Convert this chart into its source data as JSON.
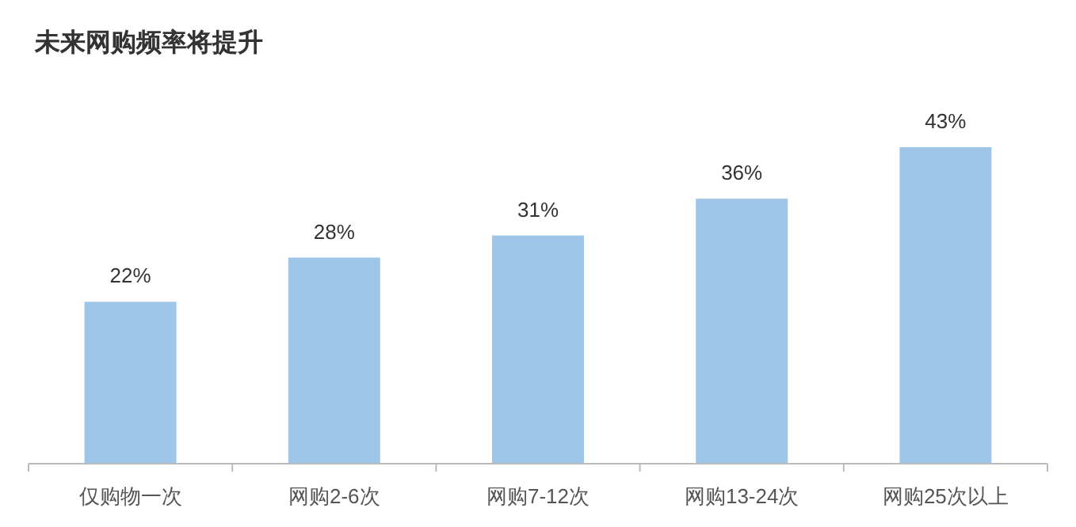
{
  "chart_data": {
    "type": "bar",
    "title": "未来网购频率将提升",
    "categories": [
      "仅购物一次",
      "网购2-6次",
      "网购7-12次",
      "网购13-24次",
      "网购25次以上"
    ],
    "values": [
      22,
      28,
      31,
      36,
      43
    ],
    "color": "#9fc5e8",
    "value_labels": [
      "22%",
      "28%",
      "31%",
      "36%",
      "43%"
    ]
  }
}
